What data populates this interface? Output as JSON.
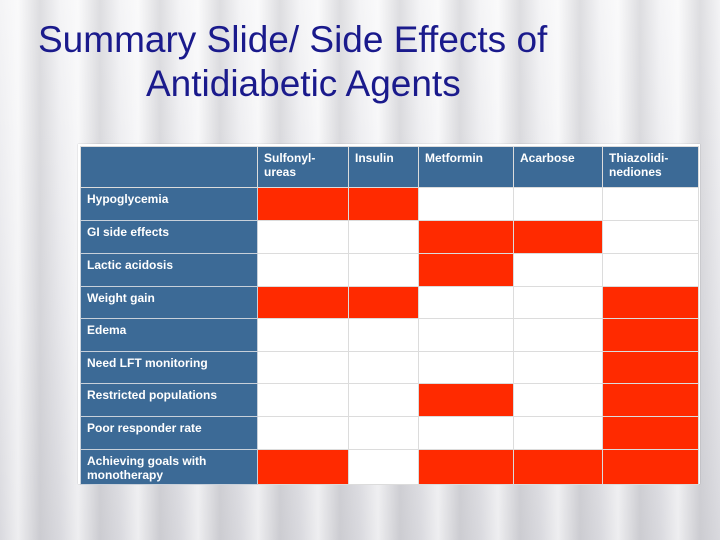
{
  "slide": {
    "title_line1": "Summary Slide/ Side Effects of",
    "title_line2": "Antidiabetic Agents"
  },
  "table": {
    "columns": [
      "Sulfonyl-ureas",
      "Insulin",
      "Metformin",
      "Acarbose",
      "Thiazolidi-nediones"
    ],
    "column_display": [
      "Sulfonyl-\nureas",
      "Insulin",
      "Metformin",
      "Acarbose",
      "Thiazolidi-\nnediones"
    ],
    "rows": [
      {
        "label": "Hypoglycemia",
        "marks": [
          true,
          true,
          false,
          false,
          false
        ]
      },
      {
        "label": "GI side effects",
        "marks": [
          false,
          false,
          true,
          true,
          false
        ]
      },
      {
        "label": "Lactic acidosis",
        "marks": [
          false,
          false,
          true,
          false,
          false
        ]
      },
      {
        "label": "Weight gain",
        "marks": [
          true,
          true,
          false,
          false,
          true
        ]
      },
      {
        "label": "Edema",
        "marks": [
          false,
          false,
          false,
          false,
          true
        ]
      },
      {
        "label": "Need LFT monitoring",
        "marks": [
          false,
          false,
          false,
          false,
          true
        ]
      },
      {
        "label": "Restricted populations",
        "marks": [
          false,
          false,
          true,
          false,
          true
        ]
      },
      {
        "label": "Poor responder rate",
        "marks": [
          false,
          false,
          false,
          false,
          true
        ]
      },
      {
        "label": "Achieving goals with monotherapy",
        "marks": [
          true,
          false,
          true,
          true,
          true
        ]
      }
    ],
    "colors": {
      "header_bg": "#3c6a96",
      "marked": "#ff2a00",
      "unmarked": "#ffffff"
    }
  }
}
